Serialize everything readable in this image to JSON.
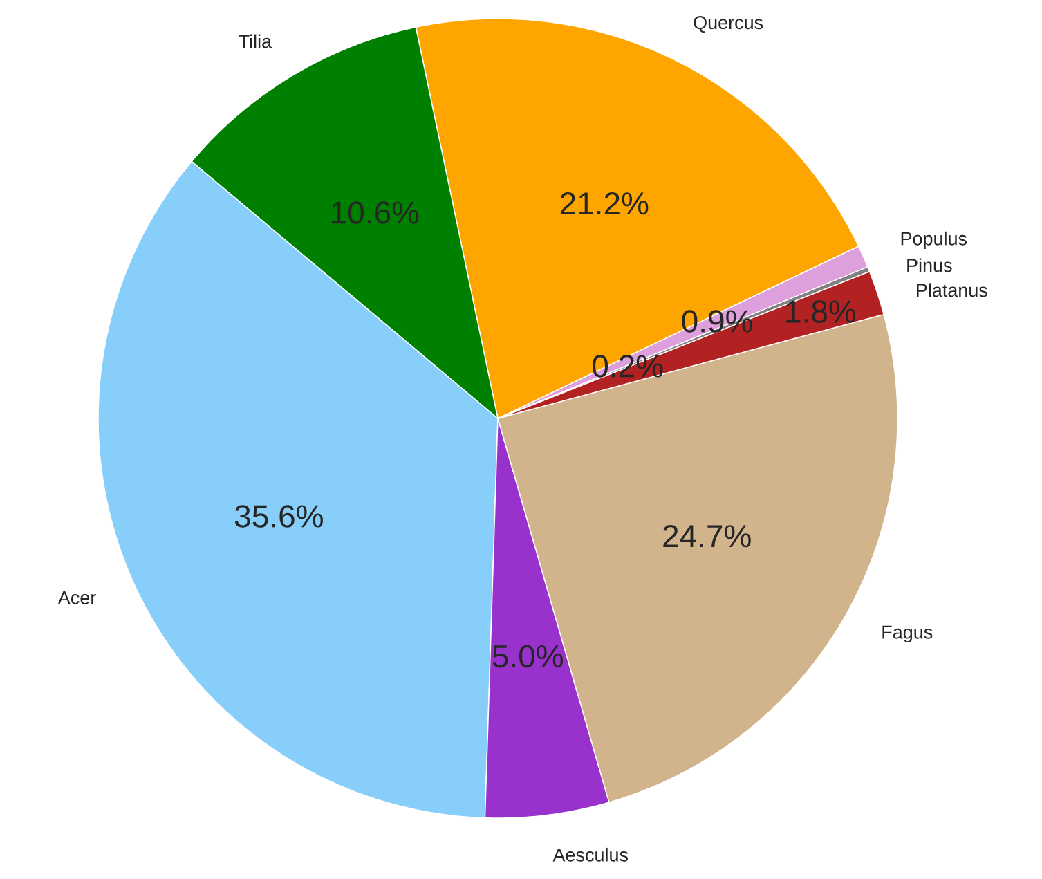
{
  "chart_data": {
    "type": "pie",
    "categories": [
      "Acer",
      "Aesculus",
      "Fagus",
      "Platanus",
      "Pinus",
      "Populus",
      "Quercus",
      "Tilia"
    ],
    "values": [
      35.6,
      5.0,
      24.7,
      1.8,
      0.2,
      0.9,
      21.2,
      10.6
    ],
    "colors": [
      "#87cefa",
      "#9932cc",
      "#d2b48c",
      "#b22222",
      "#808080",
      "#dda0dd",
      "#ffa500",
      "#008000"
    ],
    "value_labels": [
      "35.6%",
      "5.0%",
      "24.7%",
      "1.8%",
      "0.2%",
      "0.9%",
      "21.2%",
      "10.6%"
    ]
  }
}
